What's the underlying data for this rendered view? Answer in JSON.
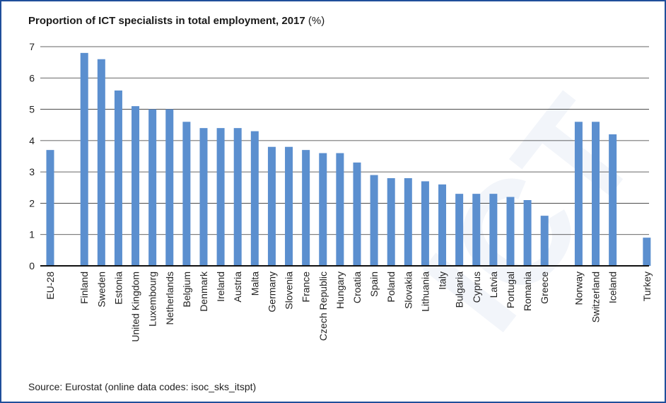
{
  "header": {
    "title": "Proportion of ICT specialists in total employment, 2017",
    "unit": "(%)"
  },
  "footer": {
    "source": "Source: Eurostat (online data codes: isoc_sks_itspt)"
  },
  "colors": {
    "bar": "#5b8fcf",
    "frame": "#1f4e9a",
    "grid": "#333333",
    "axis": "#111111"
  },
  "chart_data": {
    "type": "bar",
    "title": "Proportion of ICT specialists in total employment, 2017 (%)",
    "xlabel": "",
    "ylabel": "",
    "ylim": [
      0,
      7
    ],
    "yticks": [
      0,
      1,
      2,
      3,
      4,
      5,
      6,
      7
    ],
    "grid": true,
    "legend": "none",
    "categories": [
      "EU-28",
      "Finland",
      "Sweden",
      "Estonia",
      "United Kingdom",
      "Luxembourg",
      "Netherlands",
      "Belgium",
      "Denmark",
      "Ireland",
      "Austria",
      "Malta",
      "Germany",
      "Slovenia",
      "France",
      "Czech Republic",
      "Hungary",
      "Croatia",
      "Spain",
      "Poland",
      "Slovakia",
      "Lithuania",
      "Italy",
      "Bulgaria",
      "Cyprus",
      "Latvia",
      "Portugal",
      "Romania",
      "Greece",
      "Norway",
      "Switzerland",
      "Iceland",
      "Turkey"
    ],
    "values": [
      3.7,
      6.8,
      6.6,
      5.6,
      5.1,
      5.0,
      5.0,
      4.6,
      4.4,
      4.4,
      4.4,
      4.3,
      3.8,
      3.8,
      3.7,
      3.6,
      3.6,
      3.3,
      2.9,
      2.8,
      2.8,
      2.7,
      2.6,
      2.3,
      2.3,
      2.3,
      2.2,
      2.1,
      1.6,
      4.6,
      4.6,
      4.2,
      0.9
    ]
  }
}
